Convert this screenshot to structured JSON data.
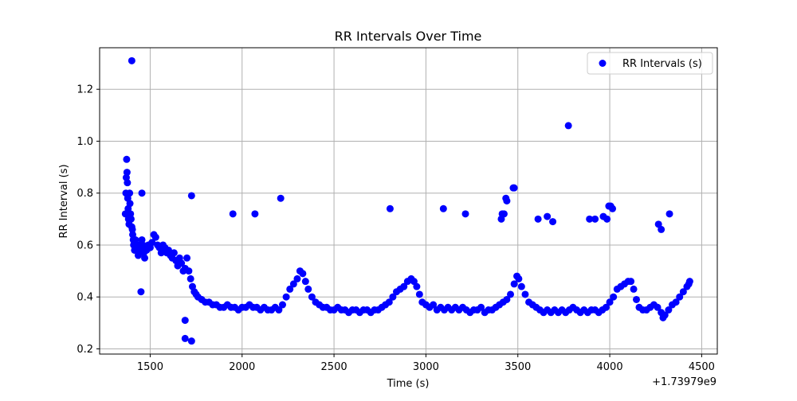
{
  "chart_data": {
    "type": "scatter",
    "title": "RR Intervals Over Time",
    "xlabel": "Time (s)",
    "ylabel": "RR Interval (s)",
    "x_offset_label": "+1.73979e9",
    "xlim": [
      1225,
      4585
    ],
    "ylim": [
      0.18,
      1.36
    ],
    "xticks": [
      1500,
      2000,
      2500,
      3000,
      3500,
      4000,
      4500
    ],
    "xtick_labels": [
      "1500",
      "2000",
      "2500",
      "3000",
      "3500",
      "4000",
      "4500"
    ],
    "yticks": [
      0.2,
      0.4,
      0.6,
      0.8,
      1.0,
      1.2
    ],
    "ytick_labels": [
      "0.2",
      "0.4",
      "0.6",
      "0.8",
      "1.0",
      "1.2"
    ],
    "grid": true,
    "legend": {
      "position": "top-right",
      "entries": [
        "RR Intervals (s)"
      ]
    },
    "series": [
      {
        "name": "RR Intervals (s)",
        "color": "#0000ff",
        "points": [
          [
            1365,
            0.72
          ],
          [
            1368,
            0.8
          ],
          [
            1370,
            0.86
          ],
          [
            1372,
            0.93
          ],
          [
            1374,
            0.88
          ],
          [
            1376,
            0.84
          ],
          [
            1378,
            0.78
          ],
          [
            1380,
            0.74
          ],
          [
            1382,
            0.7
          ],
          [
            1385,
            0.68
          ],
          [
            1388,
            0.8
          ],
          [
            1390,
            0.76
          ],
          [
            1393,
            0.72
          ],
          [
            1396,
            0.7
          ],
          [
            1400,
            0.67
          ],
          [
            1403,
            0.66
          ],
          [
            1405,
            0.64
          ],
          [
            1408,
            0.62
          ],
          [
            1410,
            0.6
          ],
          [
            1415,
            0.58
          ],
          [
            1420,
            0.62
          ],
          [
            1425,
            0.6
          ],
          [
            1430,
            0.58
          ],
          [
            1435,
            0.56
          ],
          [
            1440,
            0.6
          ],
          [
            1445,
            0.57
          ],
          [
            1450,
            0.58
          ],
          [
            1455,
            0.62
          ],
          [
            1460,
            0.6
          ],
          [
            1465,
            0.57
          ],
          [
            1470,
            0.55
          ],
          [
            1480,
            0.58
          ],
          [
            1490,
            0.6
          ],
          [
            1500,
            0.59
          ],
          [
            1510,
            0.61
          ],
          [
            1520,
            0.64
          ],
          [
            1530,
            0.63
          ],
          [
            1540,
            0.6
          ],
          [
            1550,
            0.59
          ],
          [
            1560,
            0.57
          ],
          [
            1570,
            0.6
          ],
          [
            1580,
            0.59
          ],
          [
            1590,
            0.57
          ],
          [
            1600,
            0.58
          ],
          [
            1610,
            0.56
          ],
          [
            1620,
            0.55
          ],
          [
            1630,
            0.57
          ],
          [
            1640,
            0.54
          ],
          [
            1650,
            0.52
          ],
          [
            1660,
            0.55
          ],
          [
            1670,
            0.53
          ],
          [
            1680,
            0.5
          ],
          [
            1690,
            0.51
          ],
          [
            1700,
            0.55
          ],
          [
            1710,
            0.5
          ],
          [
            1720,
            0.47
          ],
          [
            1730,
            0.44
          ],
          [
            1740,
            0.42
          ],
          [
            1750,
            0.41
          ],
          [
            1760,
            0.4
          ],
          [
            1780,
            0.39
          ],
          [
            1800,
            0.38
          ],
          [
            1820,
            0.38
          ],
          [
            1840,
            0.37
          ],
          [
            1860,
            0.37
          ],
          [
            1880,
            0.36
          ],
          [
            1900,
            0.36
          ],
          [
            1920,
            0.37
          ],
          [
            1940,
            0.36
          ],
          [
            1960,
            0.36
          ],
          [
            1980,
            0.35
          ],
          [
            2000,
            0.36
          ],
          [
            2020,
            0.36
          ],
          [
            2040,
            0.37
          ],
          [
            2060,
            0.36
          ],
          [
            2080,
            0.36
          ],
          [
            2100,
            0.35
          ],
          [
            2120,
            0.36
          ],
          [
            2140,
            0.35
          ],
          [
            2160,
            0.35
          ],
          [
            2180,
            0.36
          ],
          [
            2200,
            0.35
          ],
          [
            2220,
            0.37
          ],
          [
            2240,
            0.4
          ],
          [
            2260,
            0.43
          ],
          [
            2280,
            0.45
          ],
          [
            2300,
            0.47
          ],
          [
            2315,
            0.5
          ],
          [
            2330,
            0.49
          ],
          [
            2345,
            0.46
          ],
          [
            2360,
            0.43
          ],
          [
            2380,
            0.4
          ],
          [
            2400,
            0.38
          ],
          [
            2420,
            0.37
          ],
          [
            2440,
            0.36
          ],
          [
            2460,
            0.36
          ],
          [
            2480,
            0.35
          ],
          [
            2500,
            0.35
          ],
          [
            2520,
            0.36
          ],
          [
            2540,
            0.35
          ],
          [
            2560,
            0.35
          ],
          [
            2580,
            0.34
          ],
          [
            2600,
            0.35
          ],
          [
            2620,
            0.35
          ],
          [
            2640,
            0.34
          ],
          [
            2660,
            0.35
          ],
          [
            2680,
            0.35
          ],
          [
            2700,
            0.34
          ],
          [
            2720,
            0.35
          ],
          [
            2740,
            0.35
          ],
          [
            2760,
            0.36
          ],
          [
            2780,
            0.37
          ],
          [
            2800,
            0.38
          ],
          [
            2820,
            0.4
          ],
          [
            2840,
            0.42
          ],
          [
            2860,
            0.43
          ],
          [
            2880,
            0.44
          ],
          [
            2900,
            0.46
          ],
          [
            2920,
            0.47
          ],
          [
            2935,
            0.46
          ],
          [
            2950,
            0.44
          ],
          [
            2965,
            0.41
          ],
          [
            2980,
            0.38
          ],
          [
            3000,
            0.37
          ],
          [
            3020,
            0.36
          ],
          [
            3040,
            0.37
          ],
          [
            3060,
            0.35
          ],
          [
            3080,
            0.36
          ],
          [
            3100,
            0.35
          ],
          [
            3120,
            0.36
          ],
          [
            3140,
            0.35
          ],
          [
            3160,
            0.36
          ],
          [
            3180,
            0.35
          ],
          [
            3200,
            0.36
          ],
          [
            3220,
            0.35
          ],
          [
            3240,
            0.34
          ],
          [
            3260,
            0.35
          ],
          [
            3280,
            0.35
          ],
          [
            3300,
            0.36
          ],
          [
            3320,
            0.34
          ],
          [
            3340,
            0.35
          ],
          [
            3360,
            0.35
          ],
          [
            3380,
            0.36
          ],
          [
            3400,
            0.37
          ],
          [
            3420,
            0.38
          ],
          [
            3440,
            0.39
          ],
          [
            3460,
            0.41
          ],
          [
            3480,
            0.45
          ],
          [
            3495,
            0.48
          ],
          [
            3505,
            0.47
          ],
          [
            3520,
            0.44
          ],
          [
            3540,
            0.41
          ],
          [
            3560,
            0.38
          ],
          [
            3580,
            0.37
          ],
          [
            3600,
            0.36
          ],
          [
            3620,
            0.35
          ],
          [
            3640,
            0.34
          ],
          [
            3660,
            0.35
          ],
          [
            3680,
            0.34
          ],
          [
            3700,
            0.35
          ],
          [
            3720,
            0.34
          ],
          [
            3740,
            0.35
          ],
          [
            3760,
            0.34
          ],
          [
            3780,
            0.35
          ],
          [
            3800,
            0.36
          ],
          [
            3820,
            0.35
          ],
          [
            3840,
            0.34
          ],
          [
            3860,
            0.35
          ],
          [
            3880,
            0.34
          ],
          [
            3900,
            0.35
          ],
          [
            3920,
            0.35
          ],
          [
            3940,
            0.34
          ],
          [
            3960,
            0.35
          ],
          [
            3980,
            0.36
          ],
          [
            4000,
            0.38
          ],
          [
            4020,
            0.4
          ],
          [
            4040,
            0.43
          ],
          [
            4060,
            0.44
          ],
          [
            4080,
            0.45
          ],
          [
            4100,
            0.46
          ],
          [
            4115,
            0.46
          ],
          [
            4130,
            0.43
          ],
          [
            4145,
            0.39
          ],
          [
            4160,
            0.36
          ],
          [
            4180,
            0.35
          ],
          [
            4200,
            0.35
          ],
          [
            4220,
            0.36
          ],
          [
            4240,
            0.37
          ],
          [
            4260,
            0.36
          ],
          [
            4280,
            0.34
          ],
          [
            4290,
            0.32
          ],
          [
            4300,
            0.33
          ],
          [
            4320,
            0.35
          ],
          [
            4340,
            0.37
          ],
          [
            4360,
            0.38
          ],
          [
            4380,
            0.4
          ],
          [
            4400,
            0.42
          ],
          [
            4420,
            0.44
          ],
          [
            4430,
            0.45
          ],
          [
            4435,
            0.46
          ],
          [
            1400,
            1.31
          ],
          [
            1450,
            0.42
          ],
          [
            1455,
            0.8
          ],
          [
            1690,
            0.31
          ],
          [
            1690,
            0.24
          ],
          [
            1725,
            0.23
          ],
          [
            1725,
            0.79
          ],
          [
            1950,
            0.72
          ],
          [
            2070,
            0.72
          ],
          [
            2210,
            0.78
          ],
          [
            2805,
            0.74
          ],
          [
            3095,
            0.74
          ],
          [
            3215,
            0.72
          ],
          [
            3410,
            0.7
          ],
          [
            3415,
            0.72
          ],
          [
            3425,
            0.72
          ],
          [
            3435,
            0.78
          ],
          [
            3440,
            0.77
          ],
          [
            3475,
            0.82
          ],
          [
            3480,
            0.82
          ],
          [
            3610,
            0.7
          ],
          [
            3660,
            0.71
          ],
          [
            3690,
            0.69
          ],
          [
            3775,
            1.06
          ],
          [
            3890,
            0.7
          ],
          [
            3920,
            0.7
          ],
          [
            3965,
            0.71
          ],
          [
            3985,
            0.7
          ],
          [
            3995,
            0.75
          ],
          [
            4005,
            0.75
          ],
          [
            4015,
            0.74
          ],
          [
            4265,
            0.68
          ],
          [
            4280,
            0.66
          ],
          [
            4325,
            0.72
          ]
        ]
      }
    ]
  }
}
